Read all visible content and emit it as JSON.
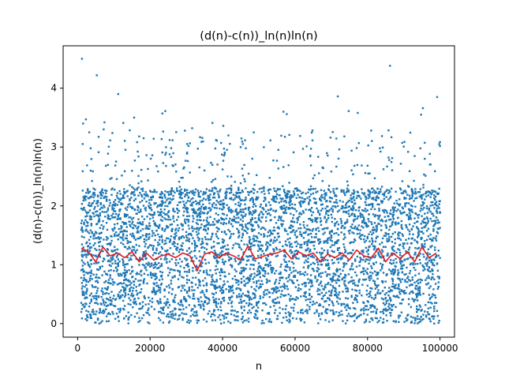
{
  "chart_data": {
    "type": "scatter",
    "title": "(d(n)-c(n))_ln(n)ln(n)",
    "xlabel": "n",
    "ylabel": "(d(n)-c(n))_ln(n)ln(n)",
    "xlim": [
      -4000,
      104000
    ],
    "ylim": [
      -0.23,
      4.72
    ],
    "x_ticks": [
      0,
      20000,
      40000,
      60000,
      80000,
      100000
    ],
    "x_tick_labels": [
      "0",
      "20000",
      "40000",
      "60000",
      "80000",
      "100000"
    ],
    "y_ticks": [
      0,
      1,
      2,
      3,
      4
    ],
    "y_tick_labels": [
      "0",
      "1",
      "2",
      "3",
      "4"
    ],
    "grid": false,
    "colors": {
      "scatter": "#1f77b4",
      "line": "#e41a1c"
    },
    "outliers": [
      {
        "x": 1200,
        "y": 4.5
      },
      {
        "x": 5300,
        "y": 4.22
      },
      {
        "x": 11200,
        "y": 3.9
      },
      {
        "x": 86200,
        "y": 4.38
      },
      {
        "x": 99200,
        "y": 3.85
      },
      {
        "x": 71800,
        "y": 3.86
      },
      {
        "x": 1500,
        "y": 3.4
      },
      {
        "x": 2300,
        "y": 3.47
      },
      {
        "x": 3200,
        "y": 3.25
      },
      {
        "x": 7400,
        "y": 3.42
      },
      {
        "x": 12600,
        "y": 3.41
      },
      {
        "x": 15600,
        "y": 3.5
      },
      {
        "x": 23400,
        "y": 3.57
      },
      {
        "x": 24200,
        "y": 3.61
      },
      {
        "x": 31600,
        "y": 3.32
      },
      {
        "x": 37200,
        "y": 3.41
      },
      {
        "x": 40200,
        "y": 3.36
      },
      {
        "x": 56800,
        "y": 3.6
      },
      {
        "x": 57700,
        "y": 3.56
      },
      {
        "x": 74800,
        "y": 3.61
      },
      {
        "x": 77300,
        "y": 3.58
      },
      {
        "x": 95300,
        "y": 3.66
      },
      {
        "x": 94800,
        "y": 3.55
      }
    ],
    "series": [
      {
        "type": "scatter",
        "n_points": 5000,
        "x_range": [
          1000,
          100000
        ],
        "y_range": [
          0,
          3.3
        ],
        "y_typical_range": [
          0,
          2.3
        ]
      },
      {
        "type": "line",
        "x": [
          1000,
          3000,
          5000,
          7000,
          9000,
          11000,
          13000,
          15000,
          17000,
          19000,
          21000,
          23000,
          25000,
          27000,
          29000,
          31000,
          33000,
          35000,
          37000,
          39000,
          41000,
          43000,
          45000,
          47000,
          49000,
          51000,
          53000,
          55000,
          57000,
          59000,
          61000,
          63000,
          65000,
          67000,
          69000,
          71000,
          73000,
          75000,
          77000,
          79000,
          81000,
          83000,
          85000,
          87000,
          89000,
          91000,
          93000,
          95000,
          97000,
          99000
        ],
        "y": [
          1.28,
          1.22,
          1.05,
          1.3,
          1.15,
          1.2,
          1.12,
          1.22,
          1.05,
          1.2,
          1.08,
          1.15,
          1.18,
          1.12,
          1.2,
          1.15,
          0.9,
          1.18,
          1.22,
          1.12,
          1.2,
          1.15,
          1.08,
          1.32,
          1.1,
          1.14,
          1.18,
          1.2,
          1.25,
          1.1,
          1.22,
          1.15,
          1.2,
          1.05,
          1.18,
          1.12,
          1.2,
          1.08,
          1.25,
          1.15,
          1.12,
          1.28,
          1.05,
          1.2,
          1.1,
          1.22,
          1.05,
          1.3,
          1.12,
          1.2
        ]
      }
    ]
  }
}
